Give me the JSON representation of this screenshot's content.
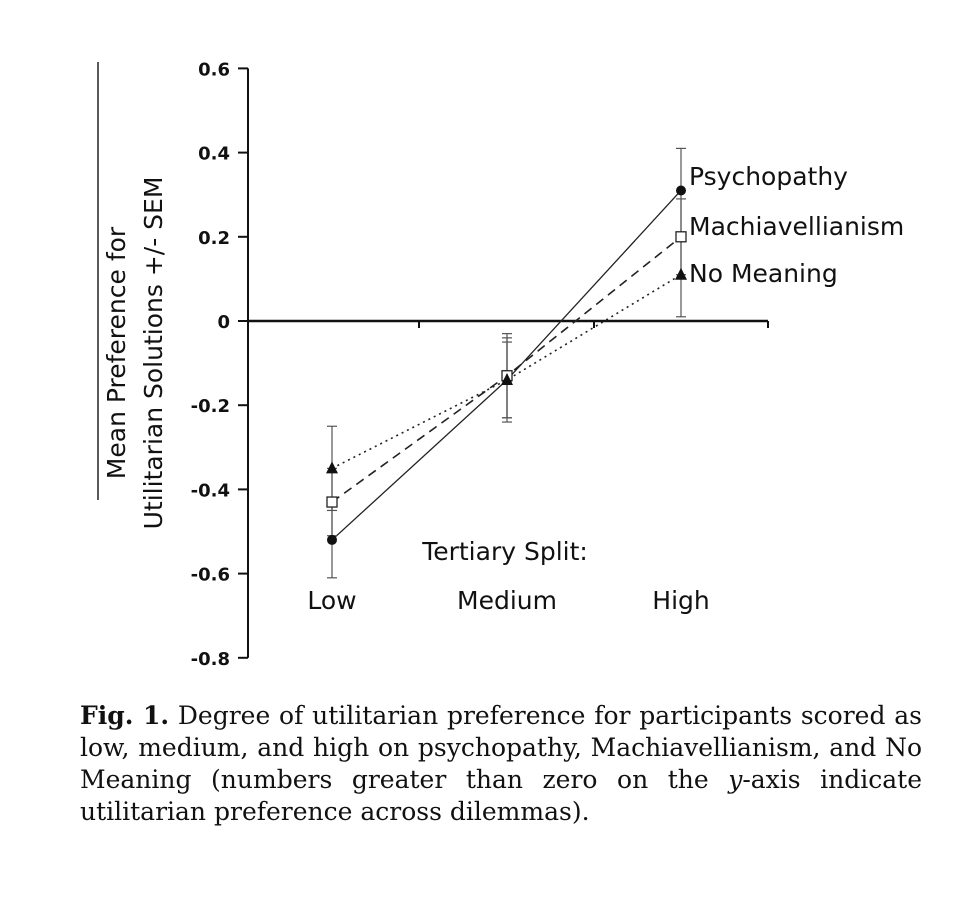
{
  "chart_data": {
    "type": "line",
    "categories": [
      "Low",
      "Medium",
      "High"
    ],
    "ylabel_line1": "Mean Preference for",
    "ylabel_line2": "Utilitarian Solutions +/- SEM",
    "xlabel": "Tertiary Split:",
    "ylim": [
      -0.8,
      0.6
    ],
    "yticks": [
      "0.6",
      "0.4",
      "0.2",
      "0",
      "-0.2",
      "-0.4",
      "-0.6",
      "-0.8"
    ],
    "ytick_values": [
      0.6,
      0.4,
      0.2,
      0,
      -0.2,
      -0.4,
      -0.6,
      -0.8
    ],
    "grid": false,
    "series": [
      {
        "name": "Psychopathy",
        "values": [
          -0.52,
          -0.14,
          0.31
        ],
        "err": [
          0.09,
          0.1,
          0.1
        ],
        "marker": "circle",
        "line": "solid"
      },
      {
        "name": "Machiavellianism",
        "values": [
          -0.43,
          -0.13,
          0.2
        ],
        "err": [
          0.08,
          0.1,
          0.09
        ],
        "marker": "square-open",
        "line": "dashed"
      },
      {
        "name": "No Meaning",
        "values": [
          -0.35,
          -0.14,
          0.11
        ],
        "err": [
          0.1,
          0.09,
          0.1
        ],
        "marker": "triangle",
        "line": "dotted"
      }
    ]
  },
  "caption": {
    "label": "Fig. 1.",
    "text_before_y": " Degree of utilitarian preference for participants scored as low, medium, and high on psychopathy, Machiavellianism, and No Meaning (numbers greater than zero on the ",
    "y_italic": "y",
    "text_after_y": "-axis indicate utilitarian preference across dilemmas)."
  }
}
